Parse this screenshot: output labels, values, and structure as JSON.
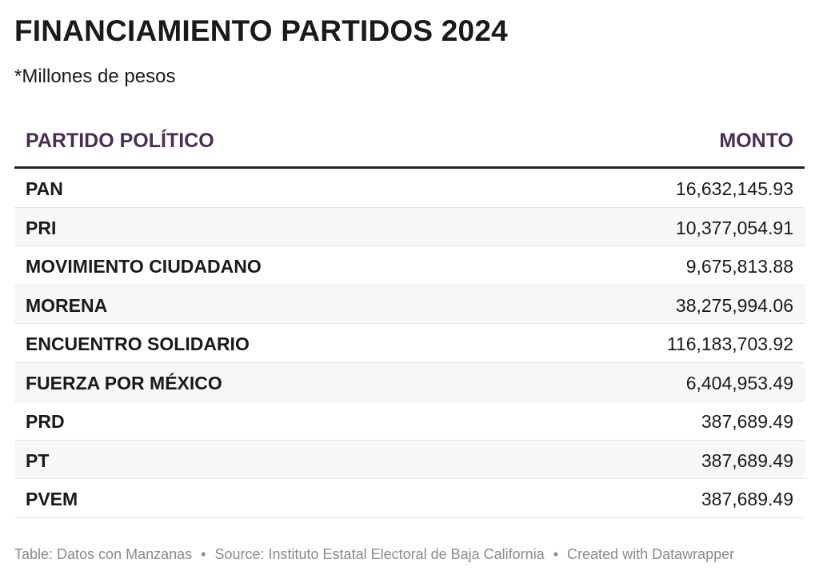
{
  "title": "FINANCIAMIENTO PARTIDOS 2024",
  "subtitle": "*Millones de pesos",
  "table": {
    "headers": [
      "PARTIDO POLÍTICO",
      "MONTO"
    ]
  },
  "chart_data": {
    "type": "table",
    "columns": [
      "PARTIDO POLÍTICO",
      "MONTO"
    ],
    "rows": [
      {
        "party": "PAN",
        "amount": "16,632,145.93"
      },
      {
        "party": "PRI",
        "amount": "10,377,054.91"
      },
      {
        "party": "MOVIMIENTO CIUDADANO",
        "amount": "9,675,813.88"
      },
      {
        "party": "MORENA",
        "amount": "38,275,994.06"
      },
      {
        "party": "ENCUENTRO SOLIDARIO",
        "amount": "116,183,703.92"
      },
      {
        "party": "FUERZA POR MÉXICO",
        "amount": "6,404,953.49"
      },
      {
        "party": "PRD",
        "amount": "387,689.49"
      },
      {
        "party": "PT",
        "amount": "387,689.49"
      },
      {
        "party": "PVEM",
        "amount": "387,689.49"
      }
    ]
  },
  "footer": {
    "table_credit": "Table: Datos con Manzanas",
    "separator": "•",
    "source": "Source: Instituto Estatal Electoral de Baja California",
    "created": "Created with Datawrapper"
  },
  "colors": {
    "header_text": "#4a2d52",
    "alt_row": "#f7f7f7",
    "footer_text": "#8a8a8a"
  }
}
